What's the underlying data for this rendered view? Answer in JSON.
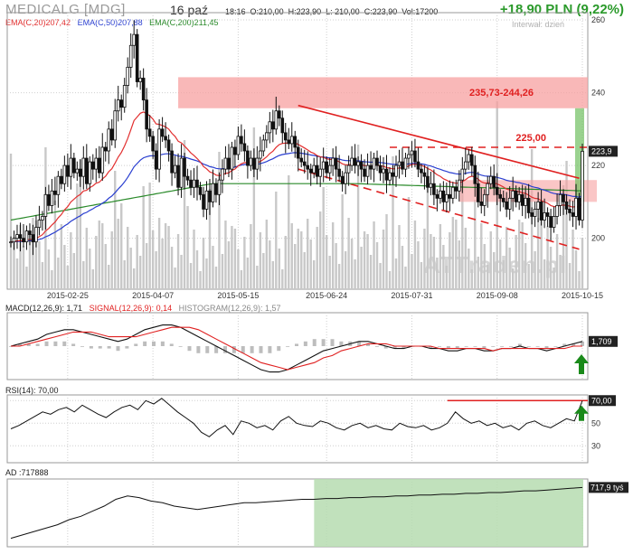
{
  "header": {
    "title": "MEDICALG [MDG]",
    "date": "16 paź",
    "time": "18:16",
    "open": "O:210,00",
    "high": "H:223,90",
    "low": "L: 210,00",
    "close": "C:223,90",
    "volume": "Vol:17200",
    "change": "+18,90 PLN (9,22%)",
    "interval": "Interwał: dzień",
    "watermark": "ATTraden.pl"
  },
  "ema_legend": {
    "ema20": "EMA(C,20)207,42",
    "ema50": "EMA(C,50)207,88",
    "ema200": "EMA(C,200)211,45"
  },
  "colors": {
    "ema20": "#e23030",
    "ema50": "#2a3fd0",
    "ema200": "#2a8a2a",
    "candle": "#111111",
    "volume": "#c8c8c8",
    "zone": "#f7a0a0",
    "green_zone": "#b6dcb0",
    "trend": "#e02020",
    "marker": "#1a8a1a"
  },
  "chart_data": [
    {
      "type": "candlestick",
      "title": "MEDICALG [MDG]",
      "x_ticks": [
        "2015-02-25",
        "2015-04-07",
        "2015-05-15",
        "2015-06-24",
        "2015-07-31",
        "2015-09-08",
        "2015-10-15"
      ],
      "y_ticks": [
        200,
        220,
        240,
        260
      ],
      "ylim": [
        186,
        262
      ],
      "close": [
        199,
        200,
        201,
        200,
        199,
        202,
        201,
        199,
        203,
        205,
        206,
        212,
        209,
        213,
        212,
        217,
        215,
        220,
        217,
        222,
        218,
        219,
        217,
        222,
        215,
        221,
        219,
        222,
        218,
        225,
        224,
        230,
        227,
        235,
        238,
        236,
        242,
        247,
        253,
        256,
        243,
        244,
        238,
        230,
        228,
        224,
        219,
        230,
        228,
        227,
        224,
        218,
        220,
        214,
        222,
        217,
        216,
        214,
        216,
        214,
        212,
        208,
        213,
        210,
        215,
        212,
        216,
        219,
        222,
        219,
        225,
        223,
        228,
        226,
        224,
        220,
        222,
        219,
        222,
        224,
        227,
        229,
        232,
        230,
        235,
        233,
        229,
        227,
        226,
        228,
        225,
        222,
        221,
        220,
        219,
        218,
        220,
        217,
        219,
        221,
        218,
        220,
        222,
        219,
        217,
        215,
        218,
        220,
        222,
        220,
        221,
        219,
        217,
        220,
        219,
        222,
        220,
        218,
        219,
        216,
        218,
        217,
        220,
        221,
        219,
        222,
        223,
        224,
        221,
        219,
        218,
        217,
        214,
        215,
        212,
        211,
        213,
        210,
        212,
        211,
        214,
        213,
        216,
        219,
        221,
        223,
        220,
        215,
        210,
        209,
        212,
        215,
        217,
        214,
        212,
        211,
        210,
        208,
        211,
        213,
        210,
        212,
        209,
        211,
        207,
        206,
        208,
        210,
        205,
        207,
        206,
        203,
        206,
        209,
        212,
        210,
        208,
        207,
        206,
        211,
        205,
        223.9
      ],
      "volume_max_relative": 1.0,
      "annotations": {
        "resistance_zone": {
          "from": 235.73,
          "to": 244.26,
          "label": "235,73-244,26"
        },
        "level": {
          "value": 225.0,
          "label": "225,00"
        },
        "support_zone_low": 210.0,
        "support_zone_high": 216.0,
        "last_price_label": "223,9",
        "axis_watermark_ticks": [
          "260",
          "240",
          "220",
          "200"
        ]
      }
    },
    {
      "type": "line",
      "title": "MACD(12,26,9): 1,71",
      "signal_label": "SIGNAL(12,26,9): 0,14",
      "histogram_label": "HISTOGRAM(12,26,9): 1,57",
      "last_value_label": "1,709",
      "series": [
        {
          "name": "MACD",
          "values": [
            0,
            1,
            2,
            3,
            5,
            6,
            7,
            7,
            6,
            5,
            4,
            3,
            2,
            3,
            5,
            7,
            8,
            9,
            9,
            8,
            6,
            4,
            2,
            0,
            -2,
            -4,
            -6,
            -8,
            -10,
            -11,
            -11,
            -10,
            -8,
            -6,
            -4,
            -2,
            -1,
            0,
            1,
            2,
            2,
            1,
            0,
            -1,
            -1,
            0,
            0,
            -1,
            -1,
            -2,
            -2,
            -1,
            -1,
            -2,
            -2,
            -1,
            -1,
            0,
            -1,
            -1,
            -2,
            -1,
            0,
            1,
            2
          ]
        },
        {
          "name": "SIGNAL",
          "values": [
            0,
            0,
            1,
            2,
            3,
            4,
            5,
            6,
            6,
            6,
            5,
            4,
            4,
            4,
            4,
            5,
            6,
            7,
            8,
            8,
            8,
            7,
            5,
            3,
            1,
            -1,
            -3,
            -5,
            -7,
            -8,
            -9,
            -10,
            -9,
            -8,
            -7,
            -5,
            -4,
            -2,
            -1,
            0,
            1,
            1,
            1,
            0,
            0,
            0,
            0,
            0,
            -1,
            -1,
            -1,
            -1,
            -1,
            -1,
            -2,
            -1,
            -1,
            -1,
            -1,
            -1,
            -1,
            -1,
            -1,
            0,
            0
          ]
        }
      ]
    },
    {
      "type": "line",
      "title": "RSI(14): 70,00",
      "y_ticks": [
        30,
        50,
        70
      ],
      "last_value_label": "70,00",
      "level_label": "50",
      "series": [
        {
          "name": "RSI(14)",
          "values": [
            45,
            48,
            52,
            56,
            60,
            58,
            62,
            64,
            60,
            66,
            62,
            58,
            55,
            60,
            64,
            66,
            62,
            70,
            67,
            72,
            66,
            60,
            55,
            50,
            42,
            38,
            44,
            48,
            40,
            52,
            50,
            46,
            48,
            44,
            52,
            56,
            50,
            48,
            47,
            52,
            50,
            46,
            44,
            48,
            50,
            46,
            48,
            45,
            44,
            50,
            47,
            46,
            48,
            44,
            46,
            50,
            60,
            54,
            50,
            52,
            48,
            50,
            46,
            48,
            44,
            50,
            52,
            48,
            46,
            50,
            54,
            52,
            70
          ]
        }
      ]
    },
    {
      "type": "line",
      "title": "AD :717888",
      "last_value_label": "717,9 tyś",
      "series": [
        {
          "name": "AD",
          "values": [
            10,
            14,
            18,
            22,
            26,
            32,
            36,
            42,
            48,
            56,
            60,
            58,
            54,
            52,
            48,
            46,
            44,
            46,
            48,
            50,
            52,
            52,
            53,
            54,
            55,
            56,
            56,
            57,
            57,
            58,
            58,
            59,
            59,
            60,
            60,
            61,
            61,
            62,
            62,
            63,
            63,
            64,
            64,
            65,
            66,
            66,
            67,
            68,
            69,
            70
          ]
        }
      ]
    }
  ]
}
